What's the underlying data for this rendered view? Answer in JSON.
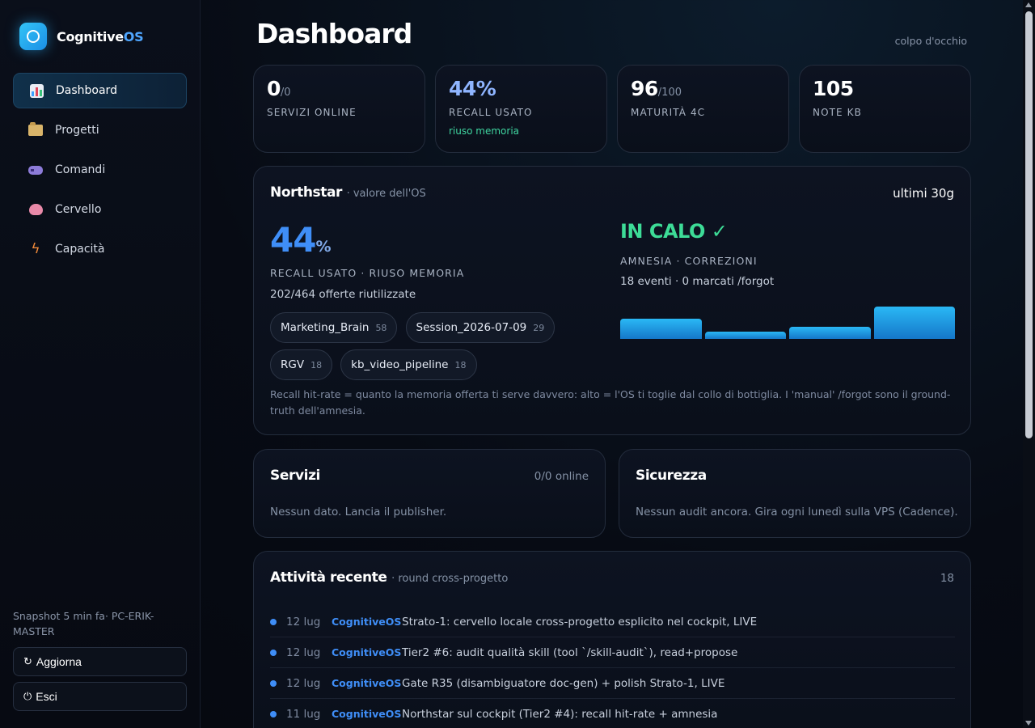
{
  "brand": {
    "name": "Cognitive",
    "accent": "OS"
  },
  "sidebar": {
    "items": [
      {
        "label": "Dashboard",
        "icon": "bar-chart-icon",
        "active": true
      },
      {
        "label": "Progetti",
        "icon": "folder-icon"
      },
      {
        "label": "Comandi",
        "icon": "gamepad-icon"
      },
      {
        "label": "Cervello",
        "icon": "brain-icon"
      },
      {
        "label": "Capacità",
        "icon": "lightning-icon"
      }
    ],
    "snapshot": "Snapshot 5 min fa· PC-ERIK-MASTER",
    "refresh_label": "Aggiorna",
    "refresh_icon": "↻",
    "logout_label": "Esci",
    "logout_icon": "⏻"
  },
  "header": {
    "title": "Dashboard",
    "subtitle": "colpo d'occhio"
  },
  "stats": [
    {
      "value": "0",
      "unit": "/0",
      "label": "SERVIZI ONLINE",
      "note": ""
    },
    {
      "value": "44%",
      "unit": "",
      "label": "RECALL USATO",
      "note": "riuso memoria"
    },
    {
      "value": "96",
      "unit": "/100",
      "label": "MATURITÀ 4C",
      "note": ""
    },
    {
      "value": "105",
      "unit": "",
      "label": "NOTE KB",
      "note": ""
    }
  ],
  "northstar": {
    "title": "Northstar",
    "subtitle": "· valore dell'OS",
    "range": "ultimi 30g",
    "recall_value": "44",
    "recall_unit": "%",
    "recall_label": "RECALL USATO · RIUSO MEMORIA",
    "recall_detail": "202/464 offerte riutilizzate",
    "chips": [
      {
        "name": "Marketing_Brain",
        "count": "58"
      },
      {
        "name": "Session_2026-07-09",
        "count": "29"
      },
      {
        "name": "RGV",
        "count": "18"
      },
      {
        "name": "kb_video_pipeline",
        "count": "18"
      }
    ],
    "trend_value": "IN CALO ✓",
    "trend_label": "AMNESIA · CORREZIONI",
    "trend_detail": "18 eventi · 0 marcati /forgot",
    "amnesia_bars": [
      0.55,
      0.2,
      0.33,
      0.88
    ],
    "footnote": "Recall hit-rate = quanto la memoria offerta ti serve davvero: alto = l'OS ti toglie dal collo di bottiglia. I 'manual' /forgot sono il ground-truth dell'amnesia."
  },
  "servizi": {
    "title": "Servizi",
    "status": "0/0 online",
    "empty": "Nessun dato. Lancia il publisher."
  },
  "sicurezza": {
    "title": "Sicurezza",
    "empty": "Nessun audit ancora. Gira ogni lunedì sulla VPS (Cadence)."
  },
  "activity": {
    "title": "Attività recente",
    "subtitle": "· round cross-progetto",
    "count": "18",
    "rows": [
      {
        "date": "12 lug",
        "project": "CognitiveOS",
        "text": "Strato-1: cervello locale cross-progetto esplicito nel cockpit, LIVE"
      },
      {
        "date": "12 lug",
        "project": "CognitiveOS",
        "text": "Tier2 #6: audit qualità skill (tool `/skill-audit`), read+propose"
      },
      {
        "date": "12 lug",
        "project": "CognitiveOS",
        "text": "Gate R35 (disambiguatore doc-gen) + polish Strato-1, LIVE"
      },
      {
        "date": "11 lug",
        "project": "CognitiveOS",
        "text": "Northstar sul cockpit (Tier2 #4): recall hit-rate + amnesia"
      }
    ]
  },
  "colors": {
    "accent": "#3f8ef7",
    "success": "#3ddc97",
    "bar": "#2ab8f5"
  }
}
